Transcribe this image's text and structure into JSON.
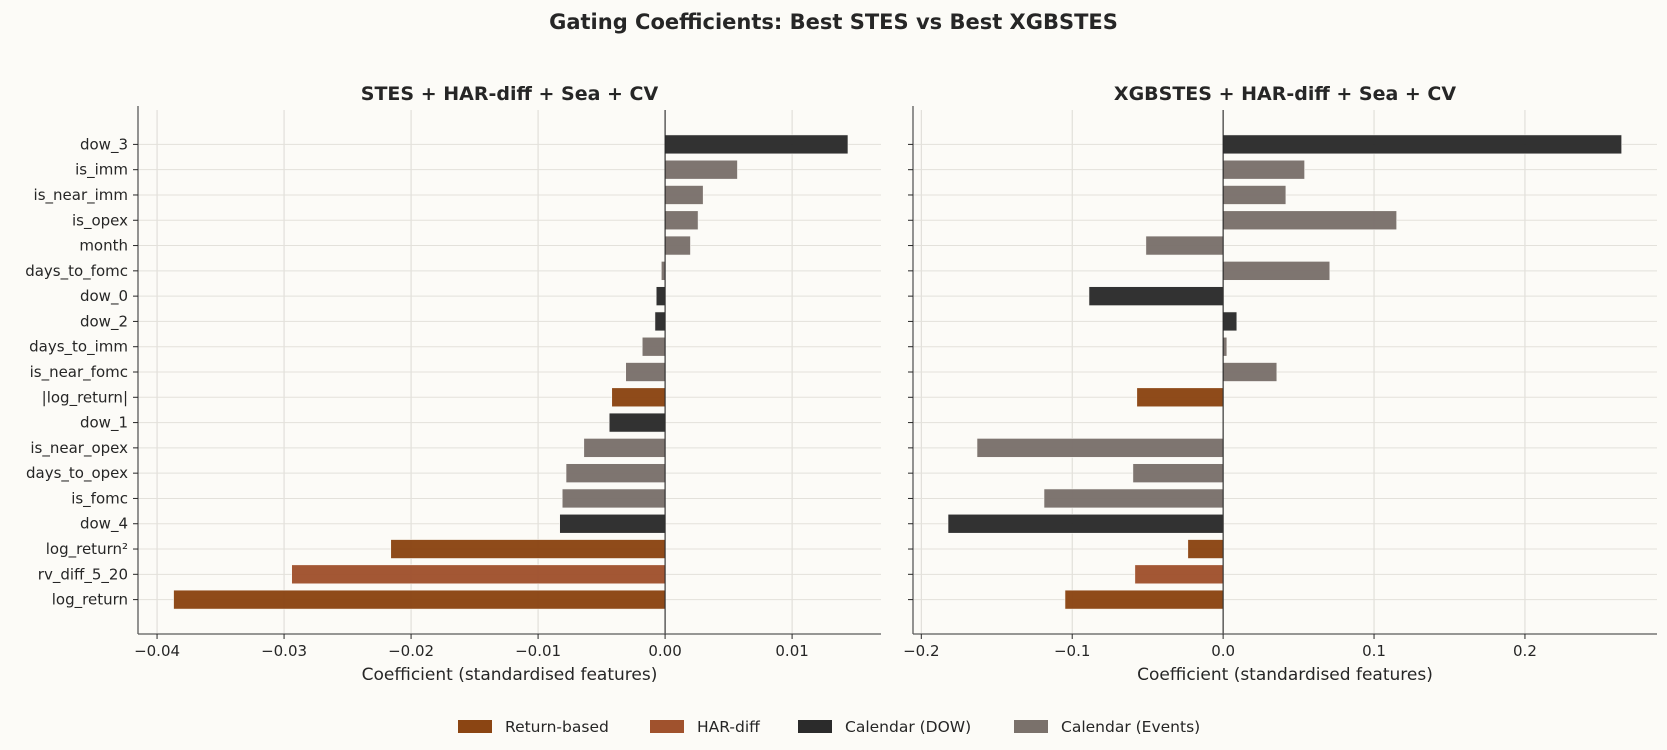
{
  "chart_data": {
    "type": "bar",
    "orientation": "horizontal",
    "suptitle": "Gating Coefficients: Best STES vs Best XGBSTES",
    "categories": [
      "dow_3",
      "is_imm",
      "is_near_imm",
      "is_opex",
      "month",
      "days_to_fomc",
      "dow_0",
      "dow_2",
      "days_to_imm",
      "is_near_fomc",
      "|log_return|",
      "dow_1",
      "is_near_opex",
      "days_to_opex",
      "is_fomc",
      "dow_4",
      "log_return²",
      "rv_diff_5_20",
      "log_return"
    ],
    "category_groups": [
      "Calendar (DOW)",
      "Calendar (Events)",
      "Calendar (Events)",
      "Calendar (Events)",
      "Calendar (Events)",
      "Calendar (Events)",
      "Calendar (DOW)",
      "Calendar (DOW)",
      "Calendar (Events)",
      "Calendar (Events)",
      "Return-based",
      "Calendar (DOW)",
      "Calendar (Events)",
      "Calendar (Events)",
      "Calendar (Events)",
      "Calendar (DOW)",
      "Return-based",
      "HAR-diff",
      "Return-based"
    ],
    "groups": [
      {
        "name": "Return-based",
        "color": "#8b4513"
      },
      {
        "name": "HAR-diff",
        "color": "#a0522d"
      },
      {
        "name": "Calendar (DOW)",
        "color": "#2b2b2b"
      },
      {
        "name": "Calendar (Events)",
        "color": "#7a716b"
      }
    ],
    "legend_position": "bottom-center",
    "grid": true,
    "panels": [
      {
        "title": "STES + HAR-diff + Sea + CV",
        "xlabel": "Coefficient (standardised features)",
        "xlim": [
          -0.0415,
          0.017
        ],
        "xticks": [
          -0.04,
          -0.03,
          -0.02,
          -0.01,
          0.0,
          0.01
        ],
        "xtick_labels": [
          "−0.04",
          "−0.03",
          "−0.02",
          "−0.01",
          "0.00",
          "0.01"
        ],
        "show_ytick_labels": true,
        "values": [
          0.0144,
          0.0057,
          0.003,
          0.0026,
          0.002,
          -0.0003,
          -0.0007,
          -0.0008,
          -0.0018,
          -0.0031,
          -0.0042,
          -0.0044,
          -0.0064,
          -0.0078,
          -0.0081,
          -0.0083,
          -0.0216,
          -0.0294,
          -0.0387
        ]
      },
      {
        "title": "XGBSTES + HAR-diff + Sea + CV",
        "xlabel": "Coefficient (standardised features)",
        "xlim": [
          -0.2055,
          0.2875
        ],
        "xticks": [
          -0.2,
          -0.1,
          0.0,
          0.1,
          0.2
        ],
        "xtick_labels": [
          "−0.2",
          "−0.1",
          "0.0",
          "0.1",
          "0.2"
        ],
        "show_ytick_labels": false,
        "values": [
          0.2641,
          0.054,
          0.0416,
          0.115,
          -0.0512,
          0.0707,
          -0.0889,
          0.0091,
          0.0025,
          0.0356,
          -0.0572,
          0.0,
          -0.1631,
          -0.0598,
          -0.1187,
          -0.1823,
          -0.0234,
          -0.0585,
          -0.1048
        ]
      }
    ]
  }
}
